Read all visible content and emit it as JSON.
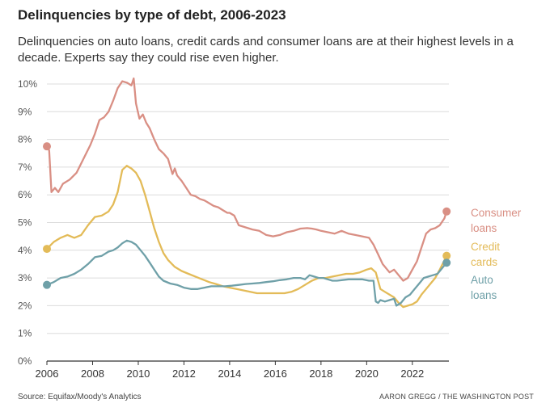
{
  "header": {
    "title": "Delinquencies by type of debt, 2006-2023",
    "subtitle": "Delinquencies on auto loans, credit cards and consumer loans are at their highest levels in a decade. Experts say they could rise even higher."
  },
  "footer": {
    "source": "Source: Equifax/Moody's Analytics",
    "credit": "AARON GREGG / THE WASHINGTON POST"
  },
  "chart_data": {
    "type": "line",
    "title": "Delinquencies by type of debt, 2006-2023",
    "xlabel": "",
    "ylabel": "",
    "xlim": [
      2006,
      2023.6
    ],
    "ylim": [
      0,
      10
    ],
    "grid": true,
    "legend": "direct labels at line ends (right)",
    "y_ticks": [
      "0%",
      "1%",
      "2%",
      "3%",
      "4%",
      "5%",
      "6%",
      "7%",
      "8%",
      "9%",
      "10%"
    ],
    "x_ticks": [
      "2006",
      "2008",
      "2010",
      "2012",
      "2014",
      "2016",
      "2018",
      "2020",
      "2022"
    ],
    "series": [
      {
        "name": "Consumer loans",
        "label_lines": [
          "Consumer",
          "loans"
        ],
        "color": "#d98f84",
        "x": [
          2006.0,
          2006.1,
          2006.2,
          2006.35,
          2006.5,
          2006.7,
          2007.0,
          2007.3,
          2007.6,
          2007.9,
          2008.1,
          2008.3,
          2008.5,
          2008.7,
          2008.9,
          2009.1,
          2009.3,
          2009.5,
          2009.7,
          2009.8,
          2009.9,
          2010.05,
          2010.2,
          2010.35,
          2010.5,
          2010.7,
          2010.9,
          2011.1,
          2011.3,
          2011.5,
          2011.6,
          2011.7,
          2011.8,
          2011.9,
          2012.1,
          2012.3,
          2012.5,
          2012.7,
          2012.9,
          2013.1,
          2013.3,
          2013.5,
          2013.7,
          2013.9,
          2014.0,
          2014.2,
          2014.4,
          2014.6,
          2014.8,
          2015.0,
          2015.3,
          2015.6,
          2015.9,
          2016.2,
          2016.5,
          2016.8,
          2017.1,
          2017.4,
          2017.6,
          2017.8,
          2018.0,
          2018.3,
          2018.6,
          2018.9,
          2019.2,
          2019.5,
          2019.8,
          2020.1,
          2020.3,
          2020.5,
          2020.7,
          2020.9,
          2021.0,
          2021.2,
          2021.4,
          2021.6,
          2021.8,
          2022.0,
          2022.2,
          2022.4,
          2022.6,
          2022.8,
          2023.0,
          2023.2,
          2023.4,
          2023.5
        ],
        "y": [
          7.75,
          7.6,
          6.1,
          6.25,
          6.1,
          6.4,
          6.55,
          6.8,
          7.3,
          7.8,
          8.2,
          8.7,
          8.8,
          9.0,
          9.4,
          9.85,
          10.1,
          10.05,
          9.95,
          10.2,
          9.3,
          8.75,
          8.9,
          8.6,
          8.4,
          8.0,
          7.65,
          7.5,
          7.3,
          6.75,
          6.95,
          6.7,
          6.6,
          6.5,
          6.25,
          6.0,
          5.95,
          5.85,
          5.8,
          5.7,
          5.6,
          5.55,
          5.45,
          5.35,
          5.35,
          5.25,
          4.9,
          4.85,
          4.8,
          4.75,
          4.7,
          4.55,
          4.5,
          4.55,
          4.65,
          4.7,
          4.78,
          4.8,
          4.78,
          4.75,
          4.7,
          4.65,
          4.6,
          4.7,
          4.6,
          4.55,
          4.5,
          4.45,
          4.2,
          3.85,
          3.5,
          3.3,
          3.2,
          3.3,
          3.1,
          2.9,
          3.0,
          3.3,
          3.6,
          4.1,
          4.6,
          4.75,
          4.8,
          4.9,
          5.15,
          5.4
        ]
      },
      {
        "name": "Credit cards",
        "label_lines": [
          "Credit",
          "cards"
        ],
        "color": "#e3bb58",
        "x": [
          2006.0,
          2006.3,
          2006.6,
          2006.9,
          2007.2,
          2007.5,
          2007.8,
          2008.1,
          2008.4,
          2008.7,
          2008.9,
          2009.1,
          2009.3,
          2009.5,
          2009.7,
          2009.9,
          2010.1,
          2010.3,
          2010.5,
          2010.7,
          2010.9,
          2011.1,
          2011.3,
          2011.6,
          2011.9,
          2012.2,
          2012.5,
          2012.8,
          2013.1,
          2013.4,
          2013.7,
          2014.0,
          2014.3,
          2014.6,
          2014.9,
          2015.2,
          2015.5,
          2015.8,
          2016.1,
          2016.4,
          2016.7,
          2017.0,
          2017.3,
          2017.6,
          2017.9,
          2018.2,
          2018.5,
          2018.8,
          2019.1,
          2019.4,
          2019.7,
          2020.0,
          2020.2,
          2020.4,
          2020.6,
          2020.8,
          2021.0,
          2021.2,
          2021.4,
          2021.6,
          2021.8,
          2022.0,
          2022.2,
          2022.4,
          2022.6,
          2022.8,
          2023.0,
          2023.2,
          2023.5
        ],
        "y": [
          4.05,
          4.3,
          4.45,
          4.55,
          4.45,
          4.55,
          4.9,
          5.2,
          5.25,
          5.4,
          5.65,
          6.1,
          6.9,
          7.05,
          6.95,
          6.8,
          6.5,
          6.0,
          5.4,
          4.8,
          4.3,
          3.9,
          3.65,
          3.4,
          3.25,
          3.15,
          3.05,
          2.95,
          2.85,
          2.78,
          2.7,
          2.65,
          2.6,
          2.55,
          2.5,
          2.45,
          2.45,
          2.45,
          2.45,
          2.45,
          2.5,
          2.6,
          2.75,
          2.9,
          3.0,
          3.0,
          3.05,
          3.1,
          3.15,
          3.15,
          3.2,
          3.3,
          3.35,
          3.2,
          2.6,
          2.5,
          2.4,
          2.3,
          2.1,
          1.95,
          2.0,
          2.05,
          2.15,
          2.4,
          2.6,
          2.8,
          3.0,
          3.3,
          3.8
        ]
      },
      {
        "name": "Auto loans",
        "label_lines": [
          "Auto",
          "loans"
        ],
        "color": "#6fa0a8",
        "x": [
          2006.0,
          2006.3,
          2006.6,
          2006.9,
          2007.2,
          2007.5,
          2007.8,
          2008.1,
          2008.4,
          2008.7,
          2008.9,
          2009.1,
          2009.3,
          2009.5,
          2009.7,
          2009.9,
          2010.1,
          2010.3,
          2010.5,
          2010.7,
          2010.9,
          2011.1,
          2011.4,
          2011.7,
          2012.0,
          2012.3,
          2012.6,
          2012.9,
          2013.2,
          2013.5,
          2013.8,
          2014.1,
          2014.4,
          2014.7,
          2015.0,
          2015.3,
          2015.6,
          2015.9,
          2016.2,
          2016.5,
          2016.8,
          2017.1,
          2017.3,
          2017.5,
          2017.7,
          2017.9,
          2018.1,
          2018.3,
          2018.5,
          2018.7,
          2018.9,
          2019.2,
          2019.5,
          2019.8,
          2020.1,
          2020.3,
          2020.4,
          2020.5,
          2020.6,
          2020.8,
          2021.0,
          2021.2,
          2021.3,
          2021.5,
          2021.7,
          2021.9,
          2022.1,
          2022.3,
          2022.5,
          2022.7,
          2022.9,
          2023.1,
          2023.3,
          2023.5
        ],
        "y": [
          2.75,
          2.85,
          3.0,
          3.05,
          3.15,
          3.3,
          3.5,
          3.75,
          3.8,
          3.95,
          4.0,
          4.1,
          4.25,
          4.35,
          4.3,
          4.2,
          4.0,
          3.8,
          3.55,
          3.3,
          3.05,
          2.9,
          2.8,
          2.75,
          2.65,
          2.6,
          2.6,
          2.65,
          2.7,
          2.7,
          2.7,
          2.72,
          2.75,
          2.78,
          2.8,
          2.82,
          2.85,
          2.88,
          2.92,
          2.95,
          3.0,
          3.0,
          2.95,
          3.1,
          3.05,
          3.0,
          3.0,
          2.95,
          2.9,
          2.9,
          2.92,
          2.95,
          2.95,
          2.95,
          2.9,
          2.9,
          2.15,
          2.1,
          2.2,
          2.15,
          2.2,
          2.25,
          2.0,
          2.1,
          2.3,
          2.4,
          2.6,
          2.8,
          3.0,
          3.05,
          3.1,
          3.15,
          3.35,
          3.55
        ]
      }
    ]
  }
}
